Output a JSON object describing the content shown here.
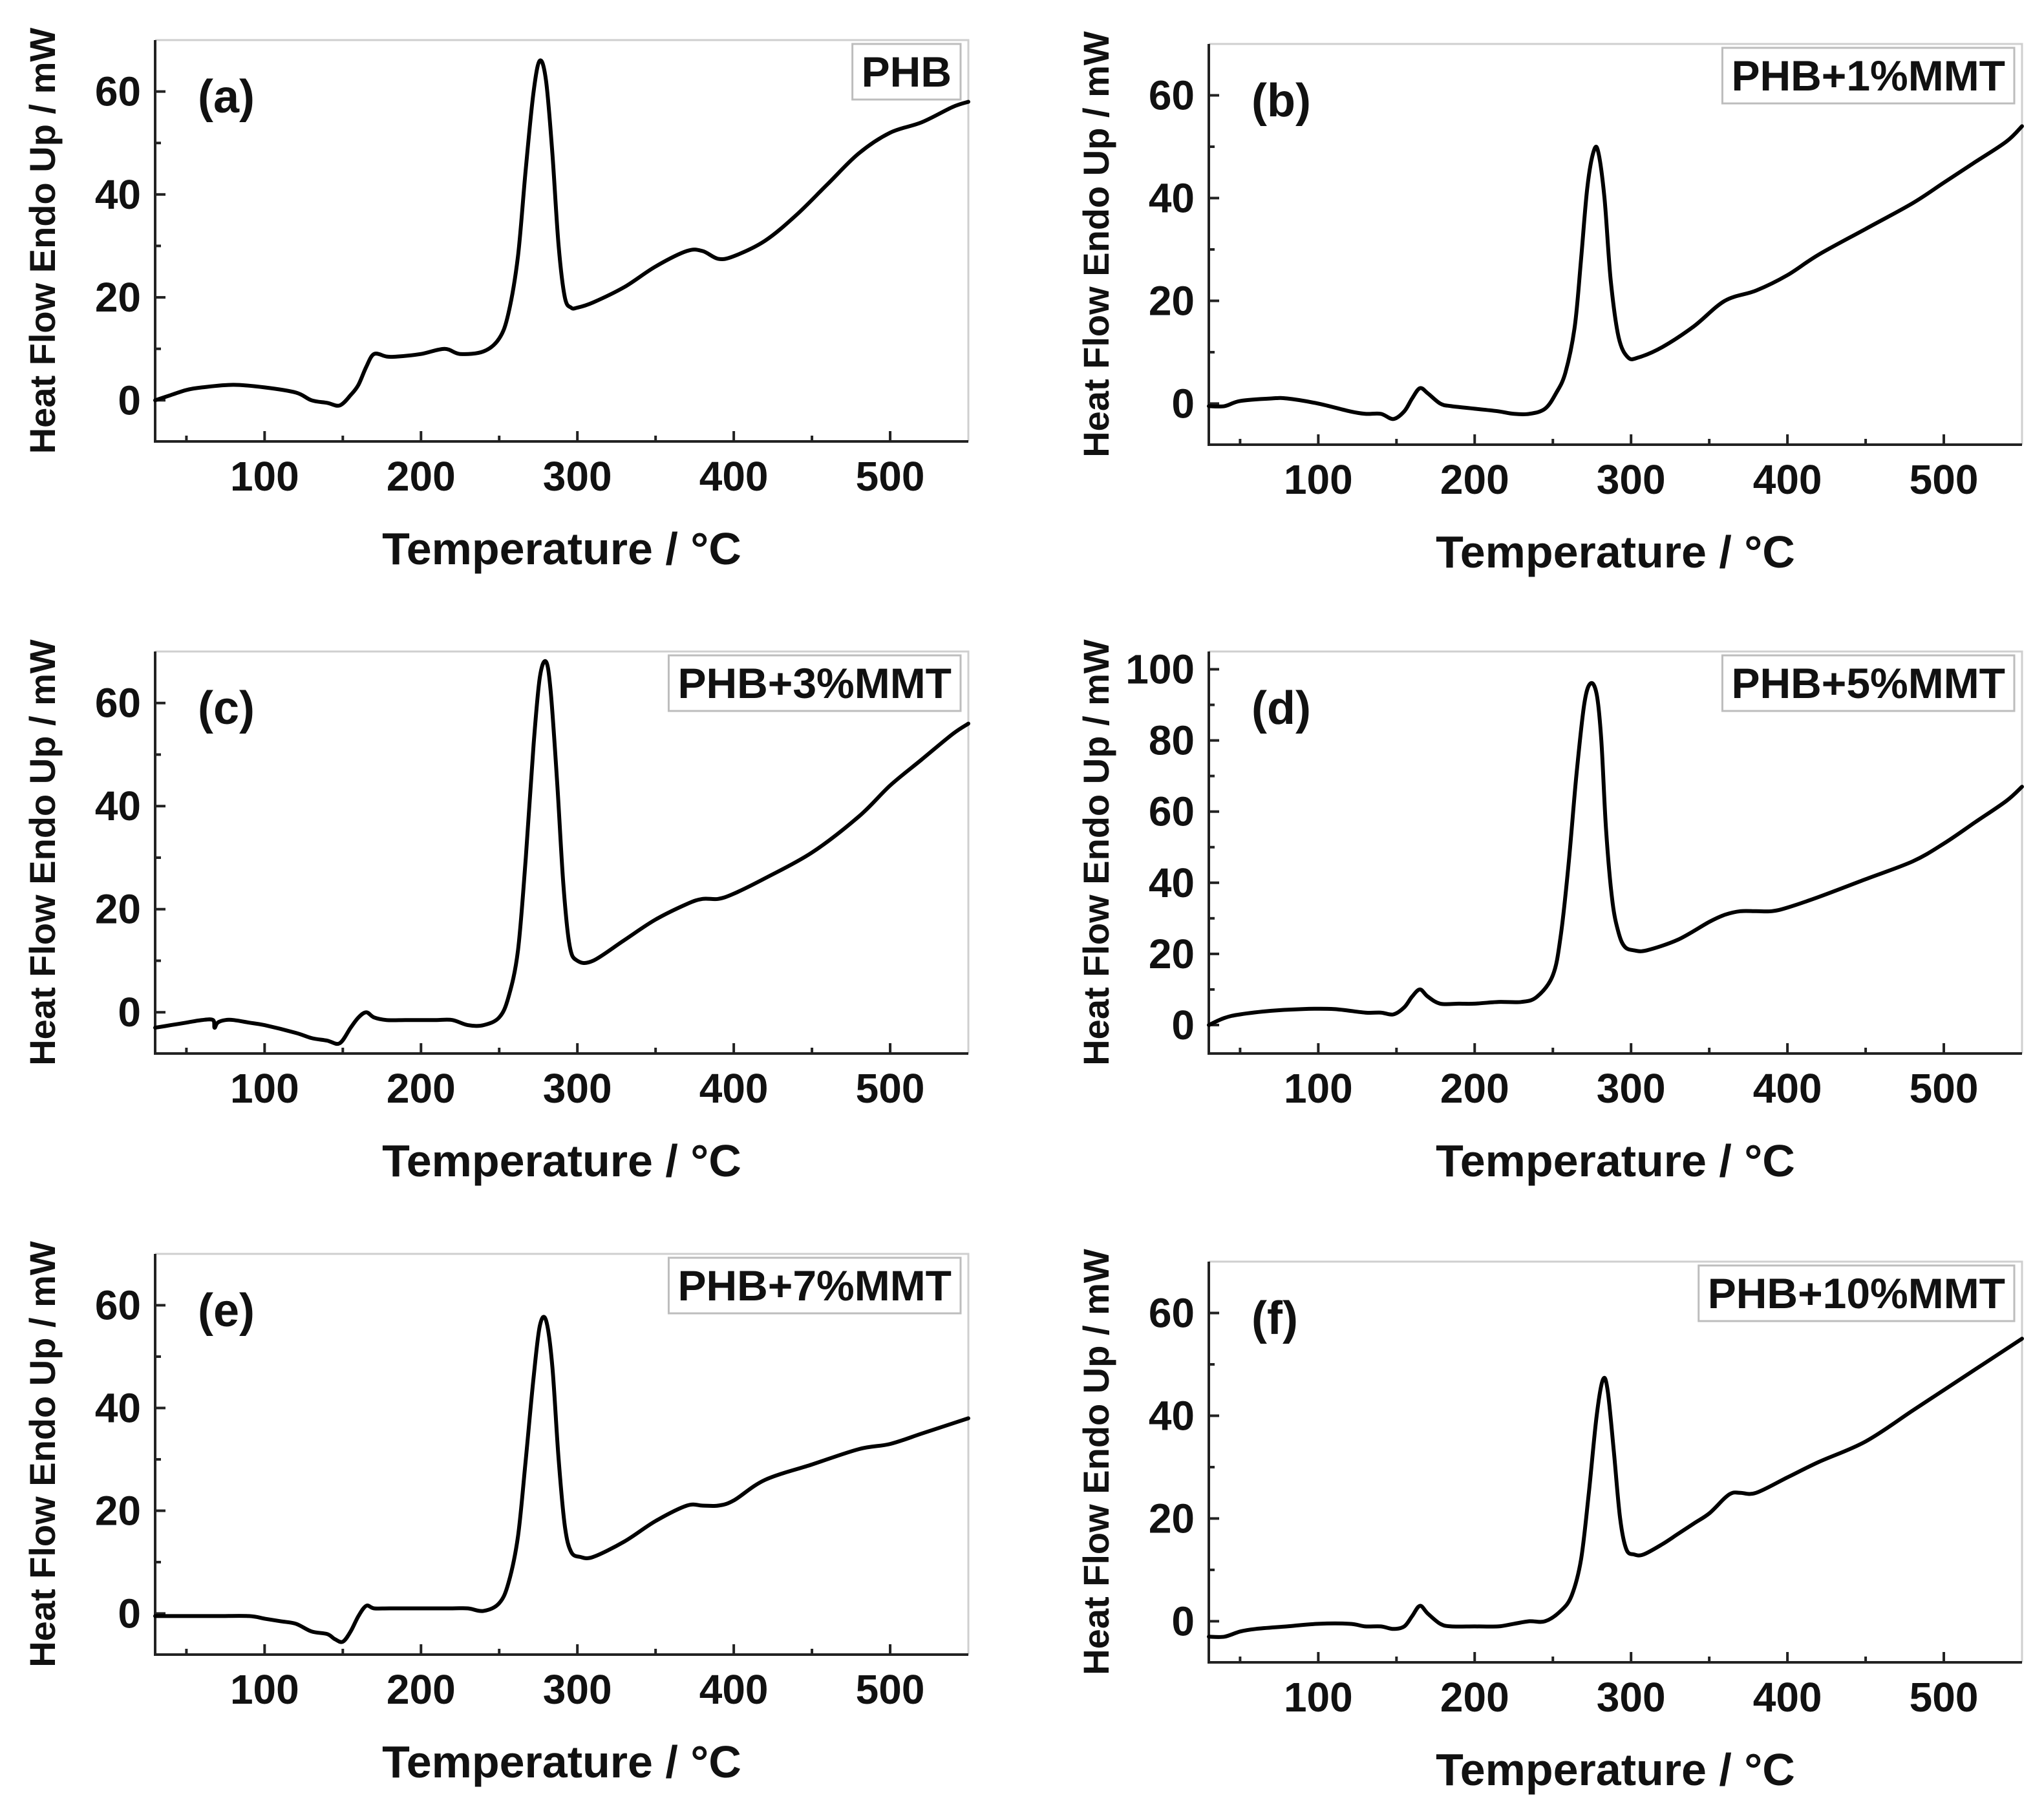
{
  "chart_data": [
    {
      "type": "line",
      "panel": "(a)",
      "legend": "PHB",
      "xlabel": "Temperature / °C",
      "ylabel": "Heat Flow Endo Up / mW",
      "xlim": [
        30,
        550
      ],
      "ylim": [
        -8,
        70
      ],
      "xticks": [
        100,
        200,
        300,
        400,
        500
      ],
      "yticks": [
        0,
        20,
        40,
        60
      ],
      "x": [
        30,
        40,
        50,
        60,
        80,
        100,
        120,
        130,
        140,
        148,
        155,
        160,
        165,
        170,
        178,
        185,
        200,
        215,
        225,
        240,
        250,
        256,
        262,
        267,
        272,
        276,
        280,
        284,
        288,
        292,
        296,
        300,
        310,
        330,
        350,
        370,
        380,
        390,
        400,
        420,
        440,
        460,
        480,
        500,
        520,
        540,
        550
      ],
      "y": [
        0,
        1,
        2,
        2.5,
        3,
        2.5,
        1.5,
        0,
        -0.5,
        -1,
        1,
        3,
        6.5,
        9,
        8.5,
        8.5,
        9,
        10,
        9,
        9.5,
        12,
        17,
        28,
        45,
        60,
        66,
        62,
        48,
        30,
        20,
        18,
        18,
        19,
        22,
        26,
        29,
        29,
        27.5,
        28,
        31,
        36,
        42,
        48,
        52,
        54,
        57,
        58
      ]
    },
    {
      "type": "line",
      "panel": "(b)",
      "legend": "PHB+1%MMT",
      "xlabel": "Temperature / °C",
      "ylabel": "Heat Flow Endo Up / mW",
      "xlim": [
        30,
        550
      ],
      "ylim": [
        -8,
        70
      ],
      "xticks": [
        100,
        200,
        300,
        400,
        500
      ],
      "yticks": [
        0,
        20,
        40,
        60
      ],
      "x": [
        30,
        40,
        50,
        70,
        80,
        100,
        120,
        130,
        140,
        148,
        155,
        160,
        165,
        170,
        178,
        185,
        200,
        215,
        225,
        235,
        245,
        252,
        258,
        264,
        268,
        272,
        276,
        279,
        283,
        287,
        292,
        298,
        305,
        320,
        340,
        360,
        380,
        400,
        420,
        450,
        480,
        500,
        520,
        540,
        550
      ],
      "y": [
        -0.5,
        -0.5,
        0.5,
        1,
        1,
        0,
        -1.5,
        -2,
        -2,
        -3,
        -1.5,
        1,
        3,
        2,
        0,
        -0.5,
        -1,
        -1.5,
        -2,
        -2,
        -1,
        2,
        6,
        15,
        28,
        42,
        49,
        49,
        40,
        24,
        13,
        9,
        9,
        11,
        15,
        20,
        22,
        25,
        29,
        34,
        39,
        43,
        47,
        51,
        54
      ]
    },
    {
      "type": "line",
      "panel": "(c)",
      "legend": "PHB+3%MMT",
      "xlabel": "Temperature / °C",
      "ylabel": "Heat Flow Endo Up / mW",
      "xlim": [
        30,
        550
      ],
      "ylim": [
        -8,
        70
      ],
      "xticks": [
        100,
        200,
        300,
        400,
        500
      ],
      "yticks": [
        0,
        20,
        40,
        60
      ],
      "x": [
        30,
        40,
        50,
        60,
        67,
        68,
        70,
        75,
        80,
        90,
        100,
        120,
        130,
        140,
        148,
        155,
        160,
        165,
        170,
        178,
        190,
        200,
        210,
        220,
        230,
        240,
        250,
        256,
        262,
        267,
        272,
        276,
        280,
        283,
        287,
        291,
        295,
        300,
        310,
        330,
        350,
        370,
        380,
        390,
        400,
        420,
        450,
        480,
        500,
        520,
        540,
        550
      ],
      "y": [
        -3,
        -2.5,
        -2,
        -1.5,
        -1.5,
        -3,
        -2,
        -1.5,
        -1.5,
        -2,
        -2.5,
        -4,
        -5,
        -5.5,
        -6,
        -3,
        -1,
        0,
        -1,
        -1.5,
        -1.5,
        -1.5,
        -1.5,
        -1.5,
        -2.5,
        -2.5,
        -1,
        3,
        12,
        30,
        52,
        65,
        68,
        62,
        45,
        25,
        13,
        10,
        10,
        14,
        18,
        21,
        22,
        22,
        23,
        26,
        31,
        38,
        44,
        49,
        54,
        56
      ]
    },
    {
      "type": "line",
      "panel": "(d)",
      "legend": "PHB+5%MMT",
      "xlabel": "Temperature / °C",
      "ylabel": "Heat Flow Endo Up / mW",
      "xlim": [
        30,
        550
      ],
      "ylim": [
        -8,
        105
      ],
      "xticks": [
        100,
        200,
        300,
        400,
        500
      ],
      "yticks": [
        0,
        20,
        40,
        60,
        80,
        100
      ],
      "x": [
        30,
        40,
        50,
        70,
        90,
        110,
        130,
        140,
        148,
        155,
        160,
        165,
        170,
        178,
        190,
        200,
        215,
        230,
        240,
        250,
        255,
        260,
        265,
        270,
        274,
        278,
        281,
        284,
        288,
        292,
        296,
        302,
        310,
        330,
        350,
        360,
        370,
        380,
        390,
        400,
        420,
        450,
        480,
        500,
        520,
        540,
        550
      ],
      "y": [
        0,
        2,
        3,
        4,
        4.5,
        4.5,
        3.5,
        3.5,
        3,
        5,
        8,
        10,
        8,
        6,
        6,
        6,
        6.5,
        6.5,
        8,
        14,
        25,
        45,
        70,
        90,
        96,
        93,
        80,
        55,
        35,
        26,
        22,
        21,
        21,
        24,
        29,
        31,
        32,
        32,
        32,
        33,
        36,
        41,
        46,
        51,
        57,
        63,
        67
      ]
    },
    {
      "type": "line",
      "panel": "(e)",
      "legend": "PHB+7%MMT",
      "xlabel": "Temperature / °C",
      "ylabel": "Heat Flow Endo Up / mW",
      "xlim": [
        30,
        550
      ],
      "ylim": [
        -8,
        70
      ],
      "xticks": [
        100,
        200,
        300,
        400,
        500
      ],
      "yticks": [
        0,
        20,
        40,
        60
      ],
      "x": [
        30,
        40,
        50,
        70,
        90,
        100,
        110,
        120,
        130,
        140,
        145,
        150,
        155,
        160,
        165,
        170,
        180,
        200,
        220,
        230,
        240,
        250,
        256,
        262,
        267,
        272,
        276,
        280,
        284,
        288,
        292,
        296,
        302,
        310,
        330,
        350,
        370,
        380,
        390,
        400,
        420,
        450,
        480,
        500,
        520,
        540,
        550
      ],
      "y": [
        -0.5,
        -0.5,
        -0.5,
        -0.5,
        -0.5,
        -1,
        -1.5,
        -2,
        -3.5,
        -4,
        -5,
        -5.5,
        -3.5,
        -0.5,
        1.5,
        1,
        1,
        1,
        1,
        1,
        0.5,
        2,
        6,
        15,
        30,
        46,
        56,
        57,
        48,
        30,
        17,
        12,
        11,
        11,
        14,
        18,
        21,
        21,
        21,
        22,
        26,
        29,
        32,
        33,
        35,
        37,
        38
      ]
    },
    {
      "type": "line",
      "panel": "(f)",
      "legend": "PHB+10%MMT",
      "xlabel": "Temperature / °C",
      "ylabel": "Heat Flow Endo Up / mW",
      "xlim": [
        30,
        550
      ],
      "ylim": [
        -8,
        70
      ],
      "xticks": [
        100,
        200,
        300,
        400,
        500
      ],
      "yticks": [
        0,
        20,
        40,
        60
      ],
      "x": [
        30,
        40,
        50,
        60,
        80,
        100,
        120,
        130,
        140,
        148,
        155,
        160,
        165,
        170,
        178,
        185,
        200,
        215,
        225,
        235,
        245,
        255,
        262,
        268,
        273,
        278,
        282,
        285,
        289,
        293,
        297,
        302,
        308,
        320,
        330,
        340,
        350,
        360,
        365,
        370,
        380,
        400,
        420,
        450,
        480,
        500,
        520,
        540,
        550
      ],
      "y": [
        -3,
        -3,
        -2,
        -1.5,
        -1,
        -0.5,
        -0.5,
        -1,
        -1,
        -1.5,
        -1,
        1,
        3,
        1.5,
        -0.5,
        -1,
        -1,
        -1,
        -0.5,
        0,
        0,
        2,
        5,
        12,
        25,
        40,
        47,
        45,
        33,
        20,
        14,
        13,
        13,
        15,
        17,
        19,
        21,
        24,
        25,
        25,
        25,
        28,
        31,
        35,
        41,
        45,
        49,
        53,
        55
      ]
    }
  ]
}
